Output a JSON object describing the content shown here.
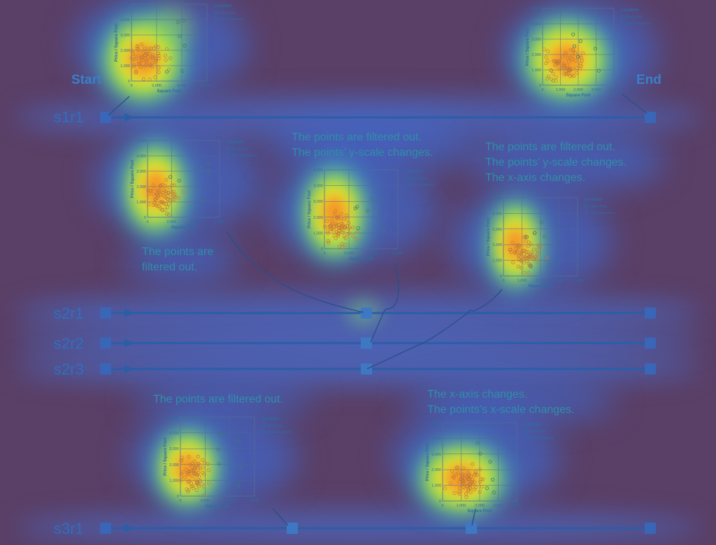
{
  "labels": {
    "start": "Start",
    "end": "End"
  },
  "rows": [
    {
      "id": "s1r1",
      "label": "s1r1"
    },
    {
      "id": "s2r1",
      "label": "s2r1"
    },
    {
      "id": "s2r2",
      "label": "s2r2"
    },
    {
      "id": "s2r3",
      "label": "s2r3"
    },
    {
      "id": "s3r1",
      "label": "s3r1"
    }
  ],
  "annotations": [
    {
      "id": "a1",
      "lines": [
        "The points are",
        "filtered out."
      ]
    },
    {
      "id": "a2",
      "lines": [
        "The points are filtered out.",
        "The points’ y-scale changes."
      ]
    },
    {
      "id": "a3",
      "lines": [
        "The points are filtered out.",
        "The points’ y-scale changes.",
        "The x-axis changes."
      ]
    },
    {
      "id": "a4",
      "lines": [
        "The points are filtered out."
      ]
    },
    {
      "id": "a5",
      "lines": [
        "The x-axis changes.",
        "The points’s x-scale changes."
      ]
    }
  ],
  "chart_common": {
    "type": "scatter",
    "xlabel": "Square Foot",
    "ylabel": "Price / Square Foot",
    "legend_title": "Location",
    "legend": [
      "New York",
      "San Francisco"
    ],
    "legend_placement": "right",
    "ylim": [
      0,
      5000
    ],
    "yticks": [
      "0",
      "1,000",
      "2,000",
      "3,000",
      "4,000",
      "5,000"
    ]
  },
  "charts": [
    {
      "id": "start",
      "xlim": [
        0,
        6000
      ],
      "xticks": [
        "0",
        "2,000",
        "4,000",
        "6,000"
      ]
    },
    {
      "id": "end",
      "xlim": [
        0,
        4000
      ],
      "xticks": [
        "0",
        "1,000",
        "2,000",
        "3,000",
        "4,000"
      ]
    },
    {
      "id": "s2a",
      "xlim": [
        0,
        6000
      ],
      "xticks": [
        "0",
        "2,000",
        "4,000",
        "6,000"
      ]
    },
    {
      "id": "s2b",
      "xlim": [
        0,
        6000
      ],
      "xticks": [
        "0",
        "2,000",
        "4,000",
        "6,000"
      ]
    },
    {
      "id": "s2c",
      "xlim": [
        0,
        4000
      ],
      "xticks": [
        "0",
        "1,000",
        "2,000",
        "3,000",
        "4,000"
      ]
    },
    {
      "id": "s3a",
      "xlim": [
        0,
        6000
      ],
      "xticks": [
        "0",
        "2,000",
        "4,000",
        "6,000"
      ]
    },
    {
      "id": "s3b",
      "xlim": [
        0,
        4000
      ],
      "xticks": [
        "0",
        "1,000",
        "2,000",
        "3,000",
        "4,000"
      ]
    }
  ],
  "colors": {
    "background": "#5a3f66",
    "track": "#2a5ea8",
    "label": "#2f6fbf",
    "annotation": "#2f8fa8",
    "chart_text": "#2d6ea0",
    "point": "#c27a3a"
  }
}
